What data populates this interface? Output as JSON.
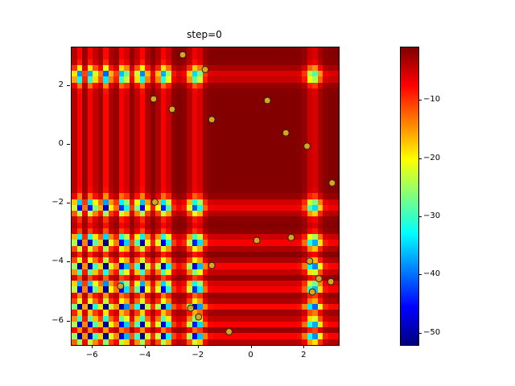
{
  "figure": {
    "background": "#ffffff"
  },
  "chart_data": {
    "type": "heatmap",
    "title": "step=0",
    "x_range": [
      -6.8,
      3.3
    ],
    "y_range": [
      -6.8,
      3.3
    ],
    "x_ticks": [
      -6,
      -4,
      -2,
      0,
      2
    ],
    "y_ticks": [
      2,
      0,
      -2,
      -4,
      -6
    ],
    "colormap": "jet",
    "value_range": [
      -52,
      -0.8
    ],
    "colorbar_ticks": [
      -10,
      -20,
      -30,
      -40,
      -50
    ],
    "grid_resolution": 51,
    "grid_on": false,
    "legend": "none",
    "field_model": {
      "description": "estimated log-density surface: f(x,y) = -h(x)*h(y), with h(t) = base + sum_i amps[i]*exp(-((t-centers[i])/widths[i])^2); deep blue wells at grid intersections of the centers, red/orange stripes along single matches, dark-red plateau elsewhere",
      "base": 1.0,
      "centers": [
        2.35,
        -2.1,
        -3.3,
        -4.15,
        -4.85,
        -5.5,
        -6.05,
        -6.55
      ],
      "amps": [
        4.6,
        5.6,
        6.0,
        6.3,
        6.5,
        6.6,
        6.7,
        6.8
      ],
      "widths": [
        0.26,
        0.26,
        0.23,
        0.21,
        0.19,
        0.17,
        0.16,
        0.15
      ]
    },
    "scatter": {
      "marker_color": "#d9a521",
      "marker_edge_color": "#1a1a1a",
      "marker_radius_px": 4,
      "points": [
        [
          -2.6,
          3.05
        ],
        [
          -1.75,
          2.55
        ],
        [
          -3.7,
          1.55
        ],
        [
          -3.0,
          1.2
        ],
        [
          -1.5,
          0.85
        ],
        [
          0.6,
          1.5
        ],
        [
          1.3,
          0.4
        ],
        [
          2.1,
          -0.05
        ],
        [
          3.05,
          -1.3
        ],
        [
          -3.65,
          -1.95
        ],
        [
          0.2,
          -3.25
        ],
        [
          1.5,
          -3.15
        ],
        [
          -1.5,
          -4.1
        ],
        [
          2.2,
          -3.95
        ],
        [
          2.55,
          -4.55
        ],
        [
          3.0,
          -4.65
        ],
        [
          2.3,
          -5.0
        ],
        [
          -4.95,
          -4.8
        ],
        [
          -2.3,
          -5.55
        ],
        [
          -2.0,
          -5.85
        ],
        [
          -0.85,
          -6.35
        ]
      ]
    }
  }
}
